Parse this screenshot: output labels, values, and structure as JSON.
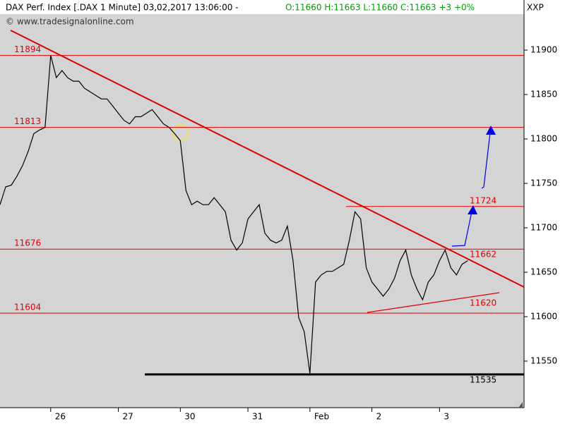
{
  "chart_data": {
    "type": "line",
    "title": "DAX Perf. Index [.DAX  1 Minute] 03,02,2017 13:06:00 -",
    "ohlc": "O:11660 H:11663 L:11660 C:11663 +3 +0%",
    "symbol_code": "XXP",
    "watermark": "© www.tradesignalonline.com",
    "series": [
      {
        "name": "DAX",
        "color": "#000000",
        "values": [
          11726,
          11746,
          11748,
          11758,
          11770,
          11786,
          11806,
          11810,
          11813,
          11894,
          11869,
          11877,
          11869,
          11865,
          11865,
          11857,
          11853,
          11849,
          11845,
          11845,
          11837,
          11829,
          11821,
          11817,
          11825,
          11825,
          11829,
          11833,
          11825,
          11817,
          11813,
          11806,
          11798,
          11742,
          11726,
          11730,
          11726,
          11726,
          11734,
          11726,
          11718,
          11686,
          11675,
          11683,
          11710,
          11718,
          11726,
          11694,
          11686,
          11683,
          11686,
          11702,
          11663,
          11599,
          11583,
          11536,
          11639,
          11647,
          11651,
          11651,
          11655,
          11659,
          11686,
          11718,
          11710,
          11655,
          11639,
          11631,
          11623,
          11631,
          11643,
          11663,
          11675,
          11647,
          11631,
          11619,
          11639,
          11647,
          11663,
          11675,
          11655,
          11647,
          11659,
          11663
        ]
      }
    ],
    "xlim": [
      0,
      93
    ],
    "xticks": [
      {
        "value": 9,
        "label": "26"
      },
      {
        "value": 21,
        "label": "27"
      },
      {
        "value": 32,
        "label": "30"
      },
      {
        "value": 44,
        "label": "31"
      },
      {
        "value": 55,
        "label": "Feb"
      },
      {
        "value": 66,
        "label": "2"
      },
      {
        "value": 78,
        "label": "3"
      }
    ],
    "ylim": [
      11497.6,
      11940.5
    ],
    "yticks": [
      11550,
      11600,
      11650,
      11700,
      11750,
      11800,
      11850,
      11900
    ],
    "levels": [
      11894,
      11813,
      11676,
      11604
    ],
    "resistance": 11724,
    "support": 11535,
    "trendline_labels": [
      11662,
      11620
    ],
    "level_color": "#e00000",
    "support_color": "#000000"
  }
}
